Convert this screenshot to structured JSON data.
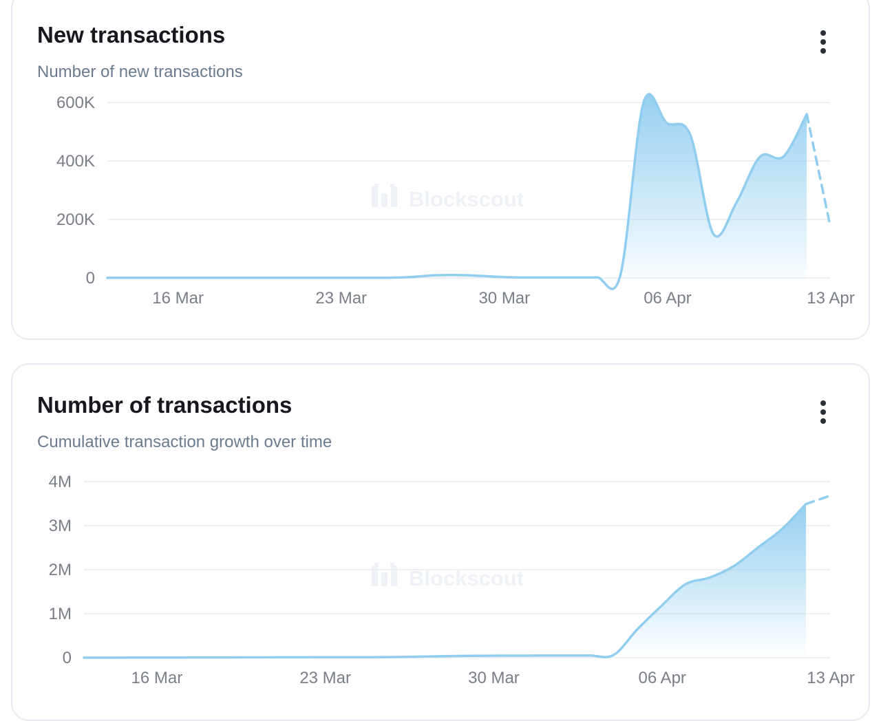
{
  "colors": {
    "line": "#90cdef",
    "grid": "#e8ebef",
    "tick": "#7a7e86"
  },
  "watermark": "Blockscout",
  "cards": [
    {
      "title": "New transactions",
      "subtitle": "Number of new transactions",
      "menu_icon": "more-vertical-icon"
    },
    {
      "title": "Number of transactions",
      "subtitle": "Cumulative transaction growth over time",
      "menu_icon": "more-vertical-icon"
    }
  ],
  "chart_data": [
    {
      "type": "area",
      "title": "New transactions",
      "ylim": [
        0,
        600000
      ],
      "y_ticks": [
        "600K",
        "400K",
        "200K",
        "0"
      ],
      "x_ticks": [
        "16 Mar",
        "23 Mar",
        "30 Mar",
        "06 Apr",
        "13 Apr"
      ],
      "x": [
        "2025-03-13",
        "2025-03-14",
        "2025-03-15",
        "2025-03-16",
        "2025-03-17",
        "2025-03-18",
        "2025-03-19",
        "2025-03-20",
        "2025-03-21",
        "2025-03-22",
        "2025-03-23",
        "2025-03-24",
        "2025-03-25",
        "2025-03-26",
        "2025-03-27",
        "2025-03-28",
        "2025-03-29",
        "2025-03-30",
        "2025-03-31",
        "2025-04-01",
        "2025-04-02",
        "2025-04-03",
        "2025-04-04",
        "2025-04-05",
        "2025-04-06",
        "2025-04-07",
        "2025-04-08",
        "2025-04-09",
        "2025-04-10",
        "2025-04-11",
        "2025-04-12",
        "2025-04-13"
      ],
      "values": [
        500,
        500,
        500,
        500,
        500,
        500,
        500,
        500,
        500,
        500,
        500,
        500,
        800,
        3000,
        9000,
        10000,
        7000,
        3000,
        1500,
        1500,
        1500,
        2000,
        8000,
        600000,
        530000,
        490000,
        150000,
        260000,
        415000,
        415000,
        560000,
        180000
      ],
      "partial_last": true,
      "grid": true
    },
    {
      "type": "area",
      "title": "Number of transactions",
      "ylim": [
        0,
        4000000
      ],
      "y_ticks": [
        "4M",
        "3M",
        "2M",
        "1M",
        "0"
      ],
      "x_ticks": [
        "16 Mar",
        "23 Mar",
        "30 Mar",
        "06 Apr",
        "13 Apr"
      ],
      "x": [
        "2025-03-13",
        "2025-03-14",
        "2025-03-15",
        "2025-03-16",
        "2025-03-17",
        "2025-03-18",
        "2025-03-19",
        "2025-03-20",
        "2025-03-21",
        "2025-03-22",
        "2025-03-23",
        "2025-03-24",
        "2025-03-25",
        "2025-03-26",
        "2025-03-27",
        "2025-03-28",
        "2025-03-29",
        "2025-03-30",
        "2025-03-31",
        "2025-04-01",
        "2025-04-02",
        "2025-04-03",
        "2025-04-04",
        "2025-04-05",
        "2025-04-06",
        "2025-04-07",
        "2025-04-08",
        "2025-04-09",
        "2025-04-10",
        "2025-04-11",
        "2025-04-12",
        "2025-04-13"
      ],
      "values": [
        1000,
        2000,
        3000,
        4000,
        5000,
        6000,
        7000,
        8000,
        9000,
        10000,
        11000,
        12000,
        13000,
        16000,
        25000,
        35000,
        42000,
        45000,
        47000,
        48000,
        49000,
        51000,
        60000,
        650000,
        1180000,
        1670000,
        1820000,
        2080000,
        2500000,
        2920000,
        3490000,
        3680000
      ],
      "partial_last": true,
      "grid": true
    }
  ]
}
